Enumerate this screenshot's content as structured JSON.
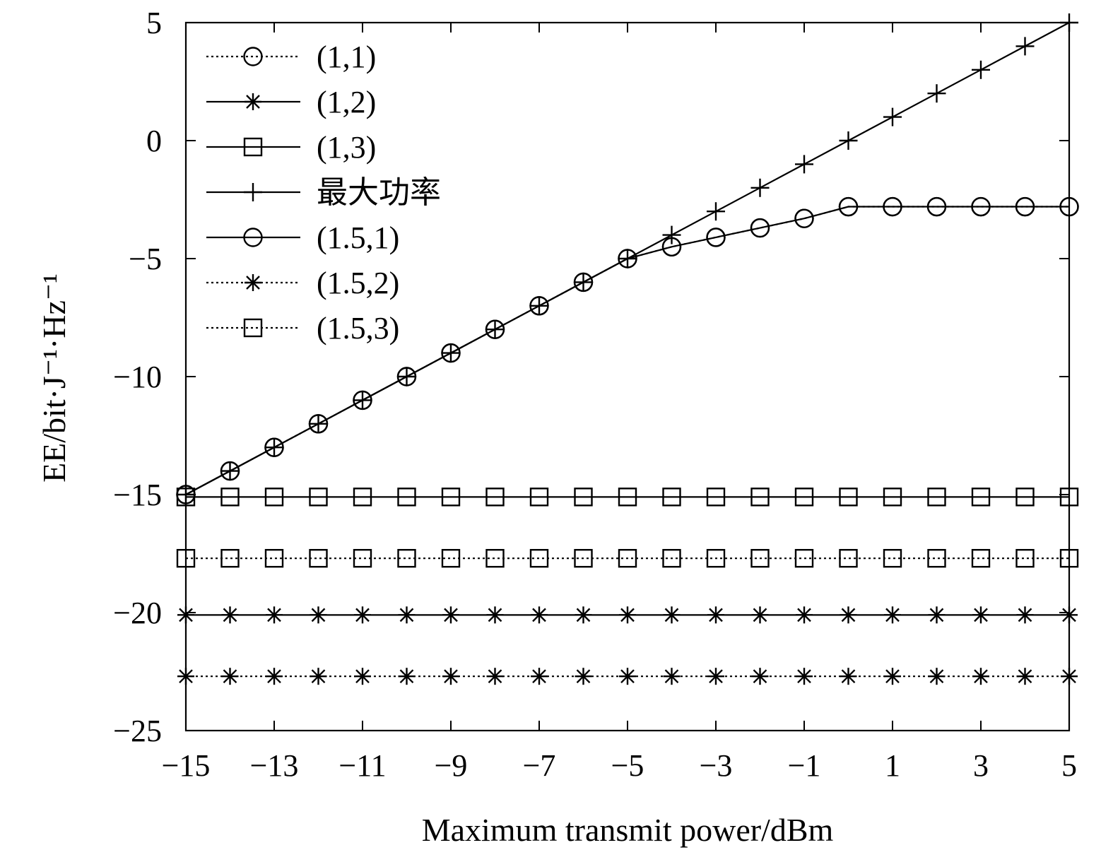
{
  "chart_data": {
    "type": "line",
    "title": "",
    "xlabel": "Maximum transmit power/dBm",
    "ylabel": "EE/bit·J⁻¹·Hz⁻¹",
    "xlim": [
      -15,
      5
    ],
    "ylim": [
      -25,
      5
    ],
    "x_tick_labels": [
      "−15",
      "−13",
      "−11",
      "−9",
      "−7",
      "−5",
      "−3",
      "−1",
      "1",
      "3",
      "5"
    ],
    "x_tick_values": [
      -15,
      -13,
      -11,
      -9,
      -7,
      -5,
      -3,
      -1,
      1,
      3,
      5
    ],
    "y_tick_labels": [
      "5",
      "0",
      "−5",
      "−10",
      "−15",
      "−20",
      "−25"
    ],
    "y_tick_values": [
      5,
      0,
      -5,
      -10,
      -15,
      -20,
      -25
    ],
    "grid": false,
    "legend_position": "top-left",
    "x": [
      -15,
      -14,
      -13,
      -12,
      -11,
      -10,
      -9,
      -8,
      -7,
      -6,
      -5,
      -4,
      -3,
      -2,
      -1,
      0,
      1,
      2,
      3,
      4,
      5
    ],
    "series": [
      {
        "name": "(1,1)",
        "line": "dotted",
        "marker": "circle",
        "values": [
          -15,
          -14,
          -13,
          -12,
          -11,
          -10,
          -9,
          -8,
          -7,
          -6,
          -5,
          -4.5,
          -4.1,
          -3.7,
          -3.3,
          -2.8,
          -2.8,
          -2.8,
          -2.8,
          -2.8,
          -2.8
        ]
      },
      {
        "name": "(1,2)",
        "line": "solid",
        "marker": "star",
        "values": [
          -20.1,
          -20.1,
          -20.1,
          -20.1,
          -20.1,
          -20.1,
          -20.1,
          -20.1,
          -20.1,
          -20.1,
          -20.1,
          -20.1,
          -20.1,
          -20.1,
          -20.1,
          -20.1,
          -20.1,
          -20.1,
          -20.1,
          -20.1,
          -20.1
        ]
      },
      {
        "name": "(1,3)",
        "line": "solid",
        "marker": "square",
        "values": [
          -15.1,
          -15.1,
          -15.1,
          -15.1,
          -15.1,
          -15.1,
          -15.1,
          -15.1,
          -15.1,
          -15.1,
          -15.1,
          -15.1,
          -15.1,
          -15.1,
          -15.1,
          -15.1,
          -15.1,
          -15.1,
          -15.1,
          -15.1,
          -15.1
        ]
      },
      {
        "name": "最大功率",
        "line": "solid",
        "marker": "plus",
        "values": [
          -15,
          -14,
          -13,
          -12,
          -11,
          -10,
          -9,
          -8,
          -7,
          -6,
          -5,
          -4,
          -3,
          -2,
          -1,
          0,
          1,
          2,
          3,
          4,
          5
        ]
      },
      {
        "name": "(1.5,1)",
        "line": "solid",
        "marker": "circle",
        "values": [
          -15,
          -14,
          -13,
          -12,
          -11,
          -10,
          -9,
          -8,
          -7,
          -6,
          -5,
          -4.5,
          -4.1,
          -3.7,
          -3.3,
          -2.8,
          -2.8,
          -2.8,
          -2.8,
          -2.8,
          -2.8
        ]
      },
      {
        "name": "(1.5,2)",
        "line": "dotted",
        "marker": "star",
        "values": [
          -22.7,
          -22.7,
          -22.7,
          -22.7,
          -22.7,
          -22.7,
          -22.7,
          -22.7,
          -22.7,
          -22.7,
          -22.7,
          -22.7,
          -22.7,
          -22.7,
          -22.7,
          -22.7,
          -22.7,
          -22.7,
          -22.7,
          -22.7,
          -22.7
        ]
      },
      {
        "name": "(1.5,3)",
        "line": "dotted",
        "marker": "square",
        "values": [
          -17.7,
          -17.7,
          -17.7,
          -17.7,
          -17.7,
          -17.7,
          -17.7,
          -17.7,
          -17.7,
          -17.7,
          -17.7,
          -17.7,
          -17.7,
          -17.7,
          -17.7,
          -17.7,
          -17.7,
          -17.7,
          -17.7,
          -17.7,
          -17.7
        ]
      }
    ]
  }
}
